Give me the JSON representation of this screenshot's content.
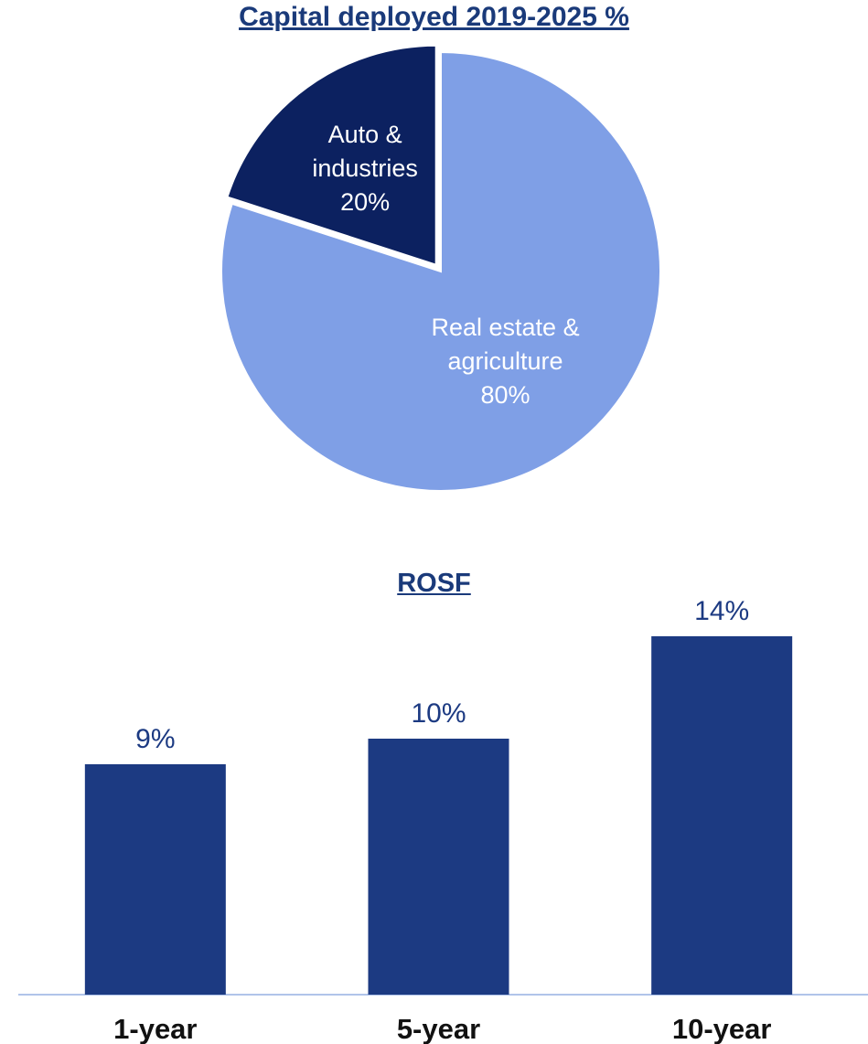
{
  "colors": {
    "title": "#1a3a7a",
    "pie_light": "#7f9fe6",
    "pie_dark": "#0c2160",
    "bar": "#1c3a82",
    "axis": "#b0c4ea",
    "label_light": "#ffffff",
    "label_dark_text": "#1c3a82",
    "category_text": "#111111"
  },
  "chart_data": [
    {
      "type": "pie",
      "title": "Capital deployed 2019-2025 %",
      "slices": [
        {
          "name_lines": [
            "Real estate &",
            "agriculture"
          ],
          "value": 80,
          "label": "80%"
        },
        {
          "name_lines": [
            "Auto &",
            "industries"
          ],
          "value": 20,
          "label": "20%",
          "exploded": true
        }
      ]
    },
    {
      "type": "bar",
      "title": "ROSF",
      "categories": [
        "1-year",
        "5-year",
        "10-year"
      ],
      "values": [
        9,
        10,
        14
      ],
      "labels": [
        "9%",
        "10%",
        "14%"
      ],
      "ylim": [
        0,
        16
      ]
    }
  ]
}
